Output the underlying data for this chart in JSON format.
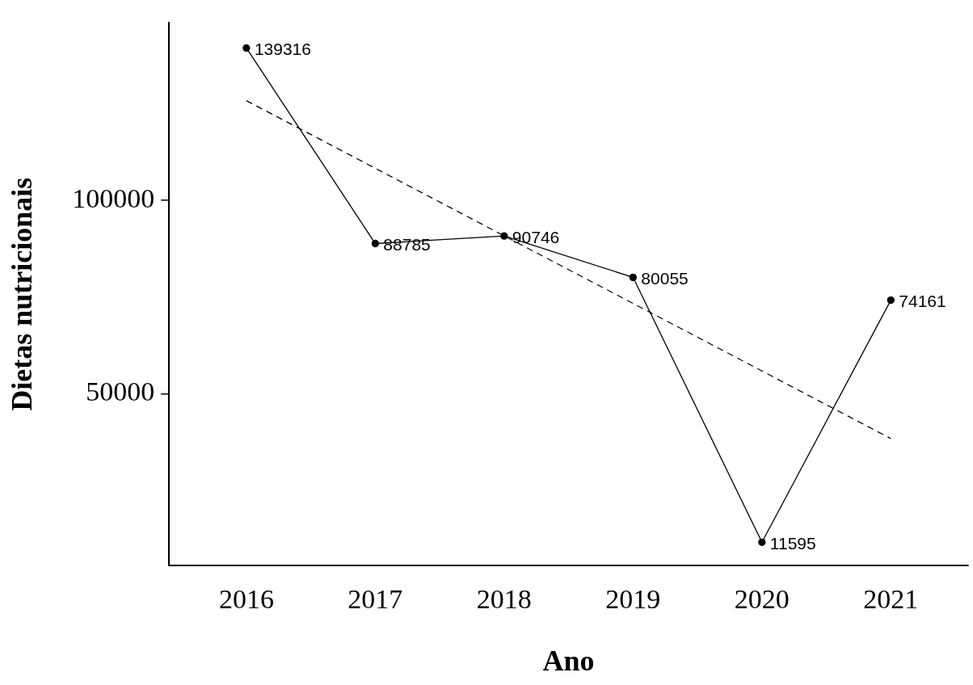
{
  "chart_data": {
    "type": "line",
    "xlabel": "Ano",
    "ylabel": "Dietas nutricionais",
    "x": [
      2016,
      2017,
      2018,
      2019,
      2020,
      2021
    ],
    "series": [
      {
        "color": "#000000",
        "marker": "circle",
        "line_style": "solid",
        "values": [
          139316,
          88785,
          90746,
          80055,
          11595,
          74161
        ],
        "value_labels": [
          "139316",
          "88785",
          "90746",
          "80055",
          "11595",
          "74161"
        ]
      },
      {
        "color": "#000000",
        "marker": "none",
        "line_style": "dashed",
        "x": [
          2016,
          2021
        ],
        "values": [
          125700,
          38400
        ]
      }
    ],
    "xlim": [
      2015.4,
      2021.6
    ],
    "xticks": [
      2016,
      2017,
      2018,
      2019,
      2020,
      2021
    ],
    "ylim": [
      5600,
      145800
    ],
    "yticks": [
      50000,
      100000
    ],
    "grid": false,
    "legend": false
  }
}
